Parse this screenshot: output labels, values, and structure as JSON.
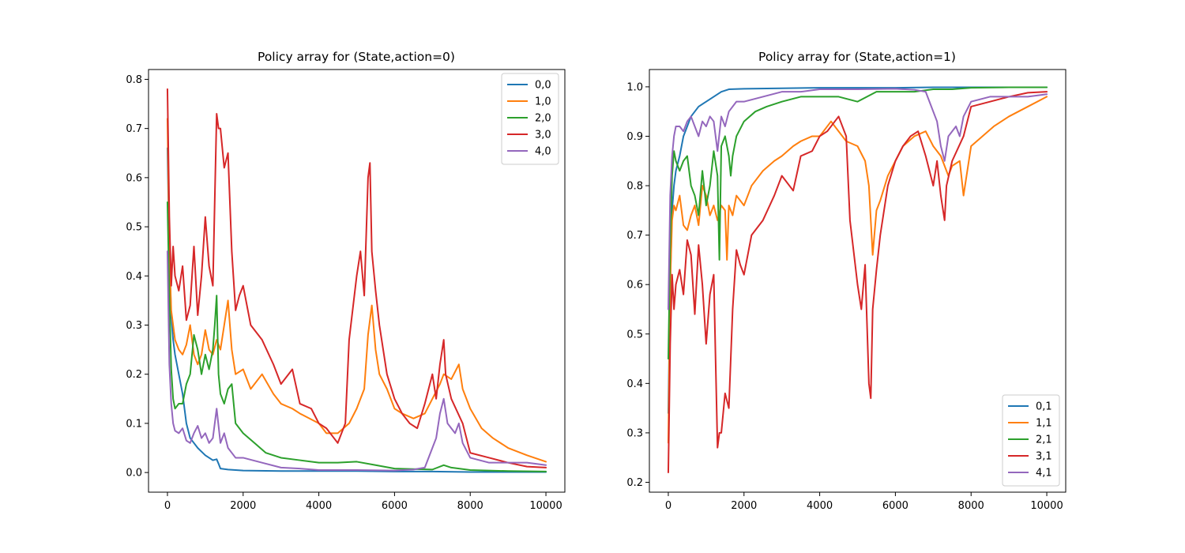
{
  "chart_data": [
    {
      "type": "line",
      "title": "Policy array for (State,action=0)",
      "xlabel": "",
      "ylabel": "",
      "xlim": [
        -500,
        10500
      ],
      "ylim": [
        -0.04,
        0.82
      ],
      "xticks": [
        0,
        2000,
        4000,
        6000,
        8000,
        10000
      ],
      "xtick_labels": [
        "0",
        "2000",
        "4000",
        "6000",
        "8000",
        "10000"
      ],
      "yticks": [
        0.0,
        0.1,
        0.2,
        0.3,
        0.4,
        0.5,
        0.6,
        0.7,
        0.8
      ],
      "ytick_labels": [
        "0.0",
        "0.1",
        "0.2",
        "0.3",
        "0.4",
        "0.5",
        "0.6",
        "0.7",
        "0.8"
      ],
      "grid": false,
      "legend_position": "top-right",
      "series": [
        {
          "name": "0,0",
          "color": "#1f77b4",
          "x": [
            0,
            50,
            100,
            150,
            200,
            300,
            400,
            500,
            600,
            800,
            1000,
            1200,
            1300,
            1350,
            1400,
            1600,
            2000,
            3000,
            4000,
            5000,
            6000,
            7000,
            8000,
            9000,
            10000
          ],
          "y": [
            0.66,
            0.45,
            0.32,
            0.27,
            0.24,
            0.2,
            0.16,
            0.1,
            0.07,
            0.05,
            0.035,
            0.025,
            0.027,
            0.018,
            0.008,
            0.006,
            0.004,
            0.003,
            0.003,
            0.003,
            0.002,
            0.002,
            0.001,
            0.001,
            0.001
          ]
        },
        {
          "name": "1,0",
          "color": "#ff7f0e",
          "x": [
            0,
            50,
            100,
            200,
            300,
            400,
            500,
            600,
            700,
            800,
            900,
            1000,
            1100,
            1200,
            1300,
            1400,
            1500,
            1600,
            1700,
            1800,
            2000,
            2200,
            2500,
            2800,
            3000,
            3300,
            3500,
            4000,
            4200,
            4500,
            4800,
            5000,
            5200,
            5300,
            5400,
            5500,
            5600,
            5800,
            6000,
            6200,
            6500,
            6800,
            7000,
            7200,
            7300,
            7500,
            7700,
            7800,
            8000,
            8300,
            8600,
            9000,
            9500,
            10000
          ],
          "y": [
            0.72,
            0.45,
            0.33,
            0.27,
            0.25,
            0.24,
            0.26,
            0.3,
            0.24,
            0.22,
            0.24,
            0.29,
            0.25,
            0.24,
            0.27,
            0.25,
            0.3,
            0.35,
            0.25,
            0.2,
            0.21,
            0.17,
            0.2,
            0.16,
            0.14,
            0.13,
            0.12,
            0.1,
            0.08,
            0.08,
            0.1,
            0.13,
            0.17,
            0.28,
            0.34,
            0.25,
            0.2,
            0.17,
            0.13,
            0.12,
            0.11,
            0.12,
            0.15,
            0.18,
            0.2,
            0.19,
            0.22,
            0.17,
            0.13,
            0.09,
            0.07,
            0.05,
            0.035,
            0.022
          ]
        },
        {
          "name": "2,0",
          "color": "#2ca02c",
          "x": [
            0,
            50,
            100,
            150,
            200,
            300,
            400,
            500,
            600,
            700,
            800,
            900,
            1000,
            1100,
            1200,
            1250,
            1300,
            1350,
            1400,
            1500,
            1600,
            1700,
            1800,
            2000,
            2300,
            2600,
            3000,
            3500,
            4000,
            4500,
            5000,
            5500,
            6000,
            6500,
            7000,
            7300,
            7500,
            8000,
            9000,
            10000
          ],
          "y": [
            0.55,
            0.36,
            0.21,
            0.15,
            0.13,
            0.14,
            0.14,
            0.18,
            0.2,
            0.28,
            0.25,
            0.2,
            0.24,
            0.21,
            0.25,
            0.3,
            0.36,
            0.2,
            0.16,
            0.14,
            0.17,
            0.18,
            0.1,
            0.08,
            0.06,
            0.04,
            0.03,
            0.025,
            0.02,
            0.02,
            0.022,
            0.015,
            0.008,
            0.007,
            0.006,
            0.015,
            0.01,
            0.005,
            0.003,
            0.002
          ]
        },
        {
          "name": "3,0",
          "color": "#d62728",
          "x": [
            0,
            50,
            100,
            150,
            200,
            300,
            400,
            500,
            600,
            700,
            800,
            900,
            1000,
            1100,
            1200,
            1300,
            1350,
            1400,
            1500,
            1600,
            1700,
            1800,
            1900,
            2000,
            2200,
            2500,
            2800,
            3000,
            3300,
            3500,
            3800,
            4000,
            4200,
            4400,
            4500,
            4700,
            4800,
            5000,
            5100,
            5200,
            5300,
            5350,
            5400,
            5500,
            5600,
            5800,
            6000,
            6200,
            6400,
            6600,
            6800,
            7000,
            7100,
            7200,
            7300,
            7350,
            7500,
            7800,
            8000,
            8500,
            9000,
            9500,
            10000
          ],
          "y": [
            0.78,
            0.52,
            0.38,
            0.46,
            0.4,
            0.37,
            0.42,
            0.31,
            0.34,
            0.46,
            0.32,
            0.4,
            0.52,
            0.42,
            0.38,
            0.73,
            0.7,
            0.7,
            0.62,
            0.65,
            0.45,
            0.33,
            0.36,
            0.38,
            0.3,
            0.27,
            0.22,
            0.18,
            0.21,
            0.14,
            0.13,
            0.1,
            0.09,
            0.07,
            0.06,
            0.1,
            0.27,
            0.4,
            0.45,
            0.36,
            0.6,
            0.63,
            0.45,
            0.37,
            0.3,
            0.2,
            0.15,
            0.12,
            0.1,
            0.09,
            0.14,
            0.2,
            0.15,
            0.22,
            0.27,
            0.2,
            0.15,
            0.1,
            0.04,
            0.03,
            0.02,
            0.012,
            0.01
          ]
        },
        {
          "name": "4,0",
          "color": "#9467bd",
          "x": [
            0,
            50,
            100,
            150,
            200,
            300,
            400,
            500,
            600,
            700,
            800,
            900,
            1000,
            1100,
            1200,
            1300,
            1400,
            1500,
            1600,
            1800,
            2000,
            2500,
            3000,
            3500,
            4000,
            5000,
            6000,
            6500,
            6800,
            7000,
            7100,
            7200,
            7300,
            7400,
            7500,
            7600,
            7700,
            7800,
            8000,
            8500,
            9000,
            9500,
            10000
          ],
          "y": [
            0.45,
            0.22,
            0.14,
            0.1,
            0.085,
            0.08,
            0.09,
            0.065,
            0.06,
            0.08,
            0.095,
            0.07,
            0.08,
            0.06,
            0.07,
            0.13,
            0.06,
            0.08,
            0.05,
            0.03,
            0.03,
            0.02,
            0.01,
            0.008,
            0.005,
            0.005,
            0.004,
            0.006,
            0.01,
            0.05,
            0.07,
            0.12,
            0.15,
            0.1,
            0.09,
            0.08,
            0.1,
            0.06,
            0.03,
            0.02,
            0.02,
            0.02,
            0.015
          ]
        }
      ]
    },
    {
      "type": "line",
      "title": "Policy array for (State,action=1)",
      "xlabel": "",
      "ylabel": "",
      "xlim": [
        -500,
        10500
      ],
      "ylim": [
        0.18,
        1.035
      ],
      "xticks": [
        0,
        2000,
        4000,
        6000,
        8000,
        10000
      ],
      "xtick_labels": [
        "0",
        "2000",
        "4000",
        "6000",
        "8000",
        "10000"
      ],
      "yticks": [
        0.2,
        0.3,
        0.4,
        0.5,
        0.6,
        0.7,
        0.8,
        0.9,
        1.0
      ],
      "ytick_labels": [
        "0.2",
        "0.3",
        "0.4",
        "0.5",
        "0.6",
        "0.7",
        "0.8",
        "0.9",
        "1.0"
      ],
      "grid": false,
      "legend_position": "bottom-right",
      "series": [
        {
          "name": "0,1",
          "color": "#1f77b4",
          "x": [
            0,
            50,
            100,
            150,
            200,
            300,
            400,
            500,
            600,
            700,
            800,
            1000,
            1200,
            1400,
            1600,
            2000,
            3000,
            4000,
            5000,
            6000,
            7000,
            8000,
            9000,
            10000
          ],
          "y": [
            0.34,
            0.6,
            0.75,
            0.8,
            0.83,
            0.86,
            0.9,
            0.92,
            0.94,
            0.95,
            0.96,
            0.97,
            0.98,
            0.99,
            0.995,
            0.996,
            0.997,
            0.998,
            0.998,
            0.998,
            0.999,
            0.999,
            0.999,
            0.999
          ]
        },
        {
          "name": "1,1",
          "color": "#ff7f0e",
          "x": [
            0,
            50,
            100,
            150,
            200,
            300,
            400,
            500,
            600,
            700,
            800,
            900,
            1000,
            1100,
            1200,
            1300,
            1400,
            1500,
            1550,
            1600,
            1700,
            1800,
            2000,
            2200,
            2500,
            2800,
            3000,
            3300,
            3500,
            3800,
            4000,
            4300,
            4500,
            4700,
            5000,
            5200,
            5300,
            5400,
            5500,
            5600,
            5800,
            6000,
            6200,
            6500,
            6800,
            7000,
            7200,
            7300,
            7400,
            7500,
            7700,
            7800,
            8000,
            8300,
            8600,
            9000,
            9500,
            10000
          ],
          "y": [
            0.28,
            0.6,
            0.73,
            0.76,
            0.75,
            0.78,
            0.72,
            0.71,
            0.74,
            0.76,
            0.72,
            0.8,
            0.78,
            0.74,
            0.76,
            0.73,
            0.76,
            0.75,
            0.65,
            0.76,
            0.74,
            0.78,
            0.76,
            0.8,
            0.83,
            0.85,
            0.86,
            0.88,
            0.89,
            0.9,
            0.9,
            0.93,
            0.91,
            0.89,
            0.88,
            0.85,
            0.8,
            0.66,
            0.75,
            0.77,
            0.82,
            0.85,
            0.88,
            0.9,
            0.91,
            0.88,
            0.86,
            0.84,
            0.82,
            0.84,
            0.85,
            0.78,
            0.88,
            0.9,
            0.92,
            0.94,
            0.96,
            0.98
          ]
        },
        {
          "name": "2,1",
          "color": "#2ca02c",
          "x": [
            0,
            50,
            100,
            150,
            200,
            300,
            400,
            500,
            600,
            700,
            800,
            900,
            1000,
            1100,
            1200,
            1300,
            1350,
            1400,
            1500,
            1600,
            1650,
            1700,
            1800,
            2000,
            2300,
            2600,
            3000,
            3500,
            4000,
            4500,
            5000,
            5500,
            6000,
            6500,
            7000,
            7500,
            8000,
            9000,
            10000
          ],
          "y": [
            0.45,
            0.68,
            0.82,
            0.87,
            0.85,
            0.83,
            0.85,
            0.86,
            0.8,
            0.78,
            0.74,
            0.83,
            0.76,
            0.8,
            0.87,
            0.82,
            0.65,
            0.88,
            0.9,
            0.86,
            0.82,
            0.86,
            0.9,
            0.93,
            0.95,
            0.96,
            0.97,
            0.98,
            0.98,
            0.98,
            0.97,
            0.99,
            0.99,
            0.99,
            0.995,
            0.995,
            0.998,
            0.999,
            0.999
          ]
        },
        {
          "name": "3,1",
          "color": "#d62728",
          "x": [
            0,
            50,
            100,
            150,
            200,
            300,
            400,
            500,
            600,
            700,
            800,
            900,
            1000,
            1100,
            1200,
            1300,
            1350,
            1400,
            1500,
            1600,
            1700,
            1800,
            1900,
            2000,
            2200,
            2500,
            2800,
            3000,
            3300,
            3500,
            3800,
            4000,
            4200,
            4400,
            4500,
            4700,
            4800,
            5000,
            5100,
            5200,
            5300,
            5350,
            5400,
            5500,
            5600,
            5800,
            6000,
            6200,
            6400,
            6600,
            6800,
            7000,
            7100,
            7200,
            7300,
            7350,
            7500,
            7800,
            8000,
            8500,
            9000,
            9500,
            10000
          ],
          "y": [
            0.22,
            0.48,
            0.62,
            0.55,
            0.6,
            0.63,
            0.58,
            0.69,
            0.66,
            0.54,
            0.68,
            0.6,
            0.48,
            0.58,
            0.62,
            0.27,
            0.3,
            0.3,
            0.38,
            0.35,
            0.55,
            0.67,
            0.64,
            0.62,
            0.7,
            0.73,
            0.78,
            0.82,
            0.79,
            0.86,
            0.87,
            0.9,
            0.91,
            0.93,
            0.94,
            0.9,
            0.73,
            0.6,
            0.55,
            0.64,
            0.4,
            0.37,
            0.55,
            0.63,
            0.7,
            0.8,
            0.85,
            0.88,
            0.9,
            0.91,
            0.86,
            0.8,
            0.85,
            0.78,
            0.73,
            0.8,
            0.85,
            0.9,
            0.96,
            0.97,
            0.98,
            0.988,
            0.99
          ]
        },
        {
          "name": "4,1",
          "color": "#9467bd",
          "x": [
            0,
            50,
            100,
            150,
            200,
            300,
            400,
            500,
            600,
            700,
            800,
            900,
            1000,
            1100,
            1200,
            1300,
            1400,
            1500,
            1600,
            1800,
            2000,
            2500,
            3000,
            3500,
            4000,
            5000,
            6000,
            6500,
            6800,
            7000,
            7100,
            7200,
            7300,
            7400,
            7500,
            7600,
            7700,
            7800,
            8000,
            8500,
            9000,
            9500,
            10000
          ],
          "y": [
            0.55,
            0.78,
            0.86,
            0.9,
            0.92,
            0.92,
            0.91,
            0.93,
            0.94,
            0.92,
            0.9,
            0.93,
            0.92,
            0.94,
            0.93,
            0.87,
            0.94,
            0.92,
            0.95,
            0.97,
            0.97,
            0.98,
            0.99,
            0.99,
            0.995,
            0.995,
            0.996,
            0.994,
            0.99,
            0.95,
            0.93,
            0.88,
            0.85,
            0.9,
            0.91,
            0.92,
            0.9,
            0.94,
            0.97,
            0.98,
            0.98,
            0.98,
            0.985
          ]
        }
      ]
    }
  ]
}
